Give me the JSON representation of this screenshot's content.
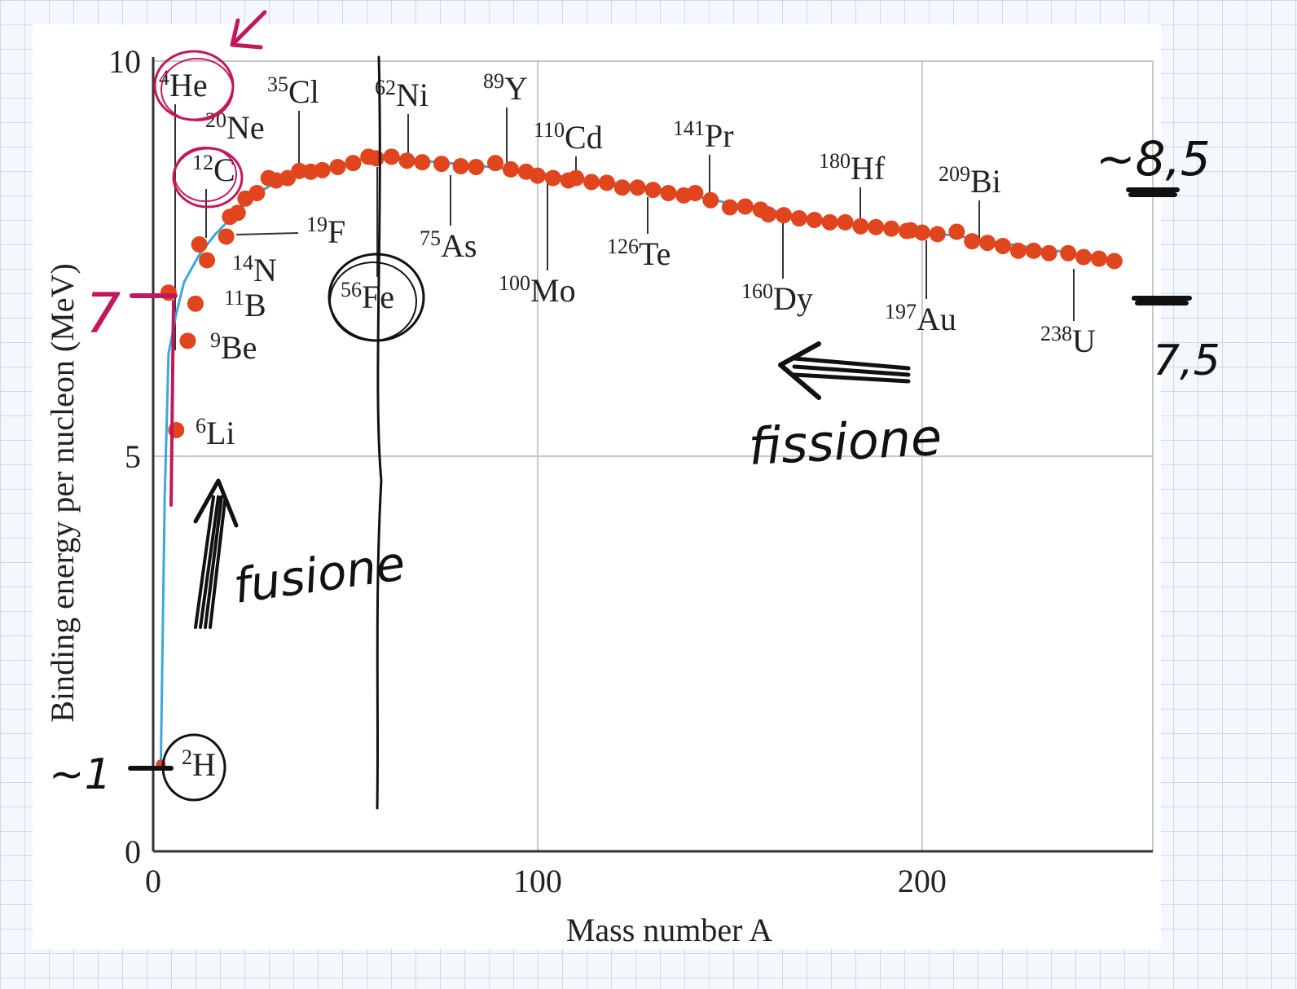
{
  "chart_data": {
    "type": "scatter",
    "xlabel": "Mass number A",
    "ylabel": "Binding energy per nucleon (MeV)",
    "xlim": [
      0,
      260
    ],
    "ylim": [
      0,
      10
    ],
    "x_ticks": [
      "0",
      "100",
      "200"
    ],
    "y_ticks": [
      "0",
      "5",
      "10"
    ],
    "grid": true,
    "series": [
      {
        "color": "#e0451d",
        "points": [
          [
            2,
            1.1
          ],
          [
            4,
            7.07
          ],
          [
            6,
            5.33
          ],
          [
            9,
            6.46
          ],
          [
            11,
            6.93
          ],
          [
            12,
            7.68
          ],
          [
            14,
            7.48
          ],
          [
            19,
            7.78
          ],
          [
            20,
            8.03
          ],
          [
            22,
            8.08
          ],
          [
            24,
            8.26
          ],
          [
            27,
            8.33
          ],
          [
            30,
            8.52
          ],
          [
            32,
            8.49
          ],
          [
            35,
            8.52
          ],
          [
            38,
            8.61
          ],
          [
            41,
            8.6
          ],
          [
            44,
            8.62
          ],
          [
            48,
            8.66
          ],
          [
            52,
            8.71
          ],
          [
            56,
            8.79
          ],
          [
            58,
            8.77
          ],
          [
            62,
            8.79
          ],
          [
            66,
            8.74
          ],
          [
            70,
            8.72
          ],
          [
            75,
            8.7
          ],
          [
            80,
            8.67
          ],
          [
            84,
            8.66
          ],
          [
            89,
            8.71
          ],
          [
            93,
            8.63
          ],
          [
            97,
            8.6
          ],
          [
            100,
            8.55
          ],
          [
            104,
            8.52
          ],
          [
            108,
            8.49
          ],
          [
            110,
            8.52
          ],
          [
            114,
            8.47
          ],
          [
            118,
            8.46
          ],
          [
            122,
            8.4
          ],
          [
            126,
            8.4
          ],
          [
            130,
            8.37
          ],
          [
            134,
            8.33
          ],
          [
            138,
            8.3
          ],
          [
            141,
            8.33
          ],
          [
            145,
            8.24
          ],
          [
            150,
            8.15
          ],
          [
            154,
            8.16
          ],
          [
            158,
            8.12
          ],
          [
            160,
            8.06
          ],
          [
            164,
            8.05
          ],
          [
            168,
            8.01
          ],
          [
            172,
            7.99
          ],
          [
            176,
            7.96
          ],
          [
            180,
            7.96
          ],
          [
            184,
            7.91
          ],
          [
            188,
            7.9
          ],
          [
            192,
            7.88
          ],
          [
            196,
            7.85
          ],
          [
            197,
            7.86
          ],
          [
            200,
            7.83
          ],
          [
            204,
            7.81
          ],
          [
            209,
            7.84
          ],
          [
            213,
            7.72
          ],
          [
            217,
            7.7
          ],
          [
            221,
            7.66
          ],
          [
            225,
            7.6
          ],
          [
            229,
            7.6
          ],
          [
            233,
            7.57
          ],
          [
            238,
            7.57
          ],
          [
            242,
            7.52
          ],
          [
            246,
            7.5
          ],
          [
            250,
            7.47
          ]
        ]
      }
    ],
    "curve": [
      [
        2,
        1.1
      ],
      [
        3,
        4.5
      ],
      [
        4,
        6.3
      ],
      [
        6,
        6.8
      ],
      [
        8,
        7.2
      ],
      [
        12,
        7.55
      ],
      [
        16,
        7.8
      ],
      [
        20,
        8.0
      ],
      [
        26,
        8.3
      ],
      [
        34,
        8.52
      ],
      [
        44,
        8.63
      ],
      [
        56,
        8.78
      ],
      [
        62,
        8.8
      ],
      [
        70,
        8.74
      ],
      [
        90,
        8.65
      ],
      [
        110,
        8.52
      ],
      [
        130,
        8.4
      ],
      [
        150,
        8.2
      ],
      [
        170,
        8.03
      ],
      [
        190,
        7.9
      ],
      [
        210,
        7.78
      ],
      [
        230,
        7.63
      ],
      [
        250,
        7.5
      ]
    ],
    "nuclide_labels": [
      {
        "mass": "4",
        "symbol": "He",
        "a": 4,
        "be": 7.07
      },
      {
        "mass": "20",
        "symbol": "Ne",
        "a": 20,
        "be": 8.03
      },
      {
        "mass": "12",
        "symbol": "C",
        "a": 12,
        "be": 7.68
      },
      {
        "mass": "35",
        "symbol": "Cl",
        "a": 35,
        "be": 8.52
      },
      {
        "mass": "62",
        "symbol": "Ni",
        "a": 62,
        "be": 8.79
      },
      {
        "mass": "89",
        "symbol": "Y",
        "a": 89,
        "be": 8.71
      },
      {
        "mass": "110",
        "symbol": "Cd",
        "a": 110,
        "be": 8.52
      },
      {
        "mass": "141",
        "symbol": "Pr",
        "a": 141,
        "be": 8.33
      },
      {
        "mass": "180",
        "symbol": "Hf",
        "a": 180,
        "be": 7.96
      },
      {
        "mass": "209",
        "symbol": "Bi",
        "a": 209,
        "be": 7.84
      },
      {
        "mass": "19",
        "symbol": "F",
        "a": 19,
        "be": 7.78
      },
      {
        "mass": "14",
        "symbol": "N",
        "a": 14,
        "be": 7.48
      },
      {
        "mass": "11",
        "symbol": "B",
        "a": 11,
        "be": 6.93
      },
      {
        "mass": "9",
        "symbol": "Be",
        "a": 9,
        "be": 6.46
      },
      {
        "mass": "6",
        "symbol": "Li",
        "a": 6,
        "be": 5.33
      },
      {
        "mass": "2",
        "symbol": "H",
        "a": 2,
        "be": 1.1
      },
      {
        "mass": "56",
        "symbol": "Fe",
        "a": 56,
        "be": 8.79
      },
      {
        "mass": "75",
        "symbol": "As",
        "a": 75,
        "be": 8.7
      },
      {
        "mass": "100",
        "symbol": "Mo",
        "a": 100,
        "be": 8.55
      },
      {
        "mass": "126",
        "symbol": "Te",
        "a": 126,
        "be": 8.4
      },
      {
        "mass": "160",
        "symbol": "Dy",
        "a": 160,
        "be": 8.06
      },
      {
        "mass": "197",
        "symbol": "Au",
        "a": 197,
        "be": 7.86
      },
      {
        "mass": "238",
        "symbol": "U",
        "a": 238,
        "be": 7.57
      }
    ]
  },
  "annotations": {
    "fusion": "fusione",
    "fission": "fissione",
    "peak_value": "~8,5",
    "heavy_value": "7,5",
    "light_value": "7",
    "deuterium_value": "~1"
  },
  "colors": {
    "points": "#e0451d",
    "curve": "#39a9dd",
    "magenta_ink": "#c2185b",
    "black_ink": "#111111",
    "grid": "#c8c8c8"
  }
}
